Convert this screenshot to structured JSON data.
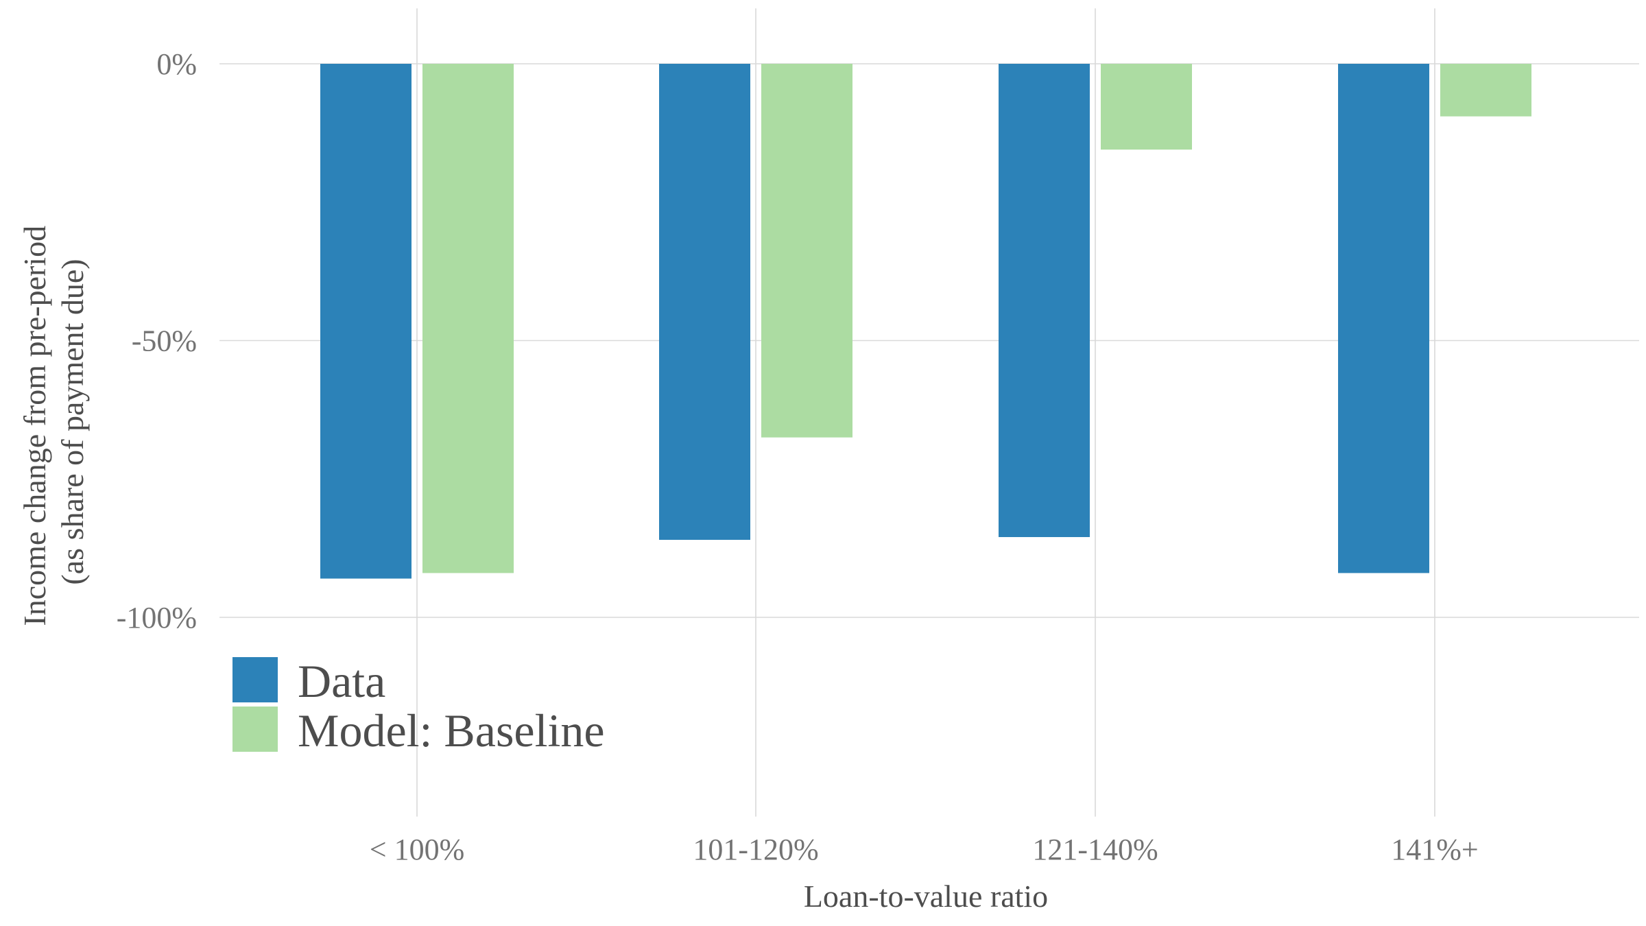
{
  "chart_data": {
    "type": "bar",
    "categories": [
      "< 100%",
      "101-120%",
      "121-140%",
      "141%+"
    ],
    "series": [
      {
        "name": "Data",
        "values": [
          -0.93,
          -0.86,
          -0.855,
          -0.92
        ],
        "color": "#2c82b8"
      },
      {
        "name": "Model: Baseline",
        "values": [
          -0.92,
          -0.675,
          -0.155,
          -0.095
        ],
        "color": "#acdca2"
      }
    ],
    "y_ticks": [
      0,
      -0.5,
      -1.0
    ],
    "y_tick_labels": [
      "0%",
      "-50%",
      "-100%"
    ],
    "ylim": [
      -1.36,
      0.1
    ],
    "xlabel": "Loan-to-value ratio",
    "ylabel": [
      "Income change from pre-period",
      "(as share of payment due)"
    ],
    "grid": true,
    "legend_position": "bottom-left"
  }
}
